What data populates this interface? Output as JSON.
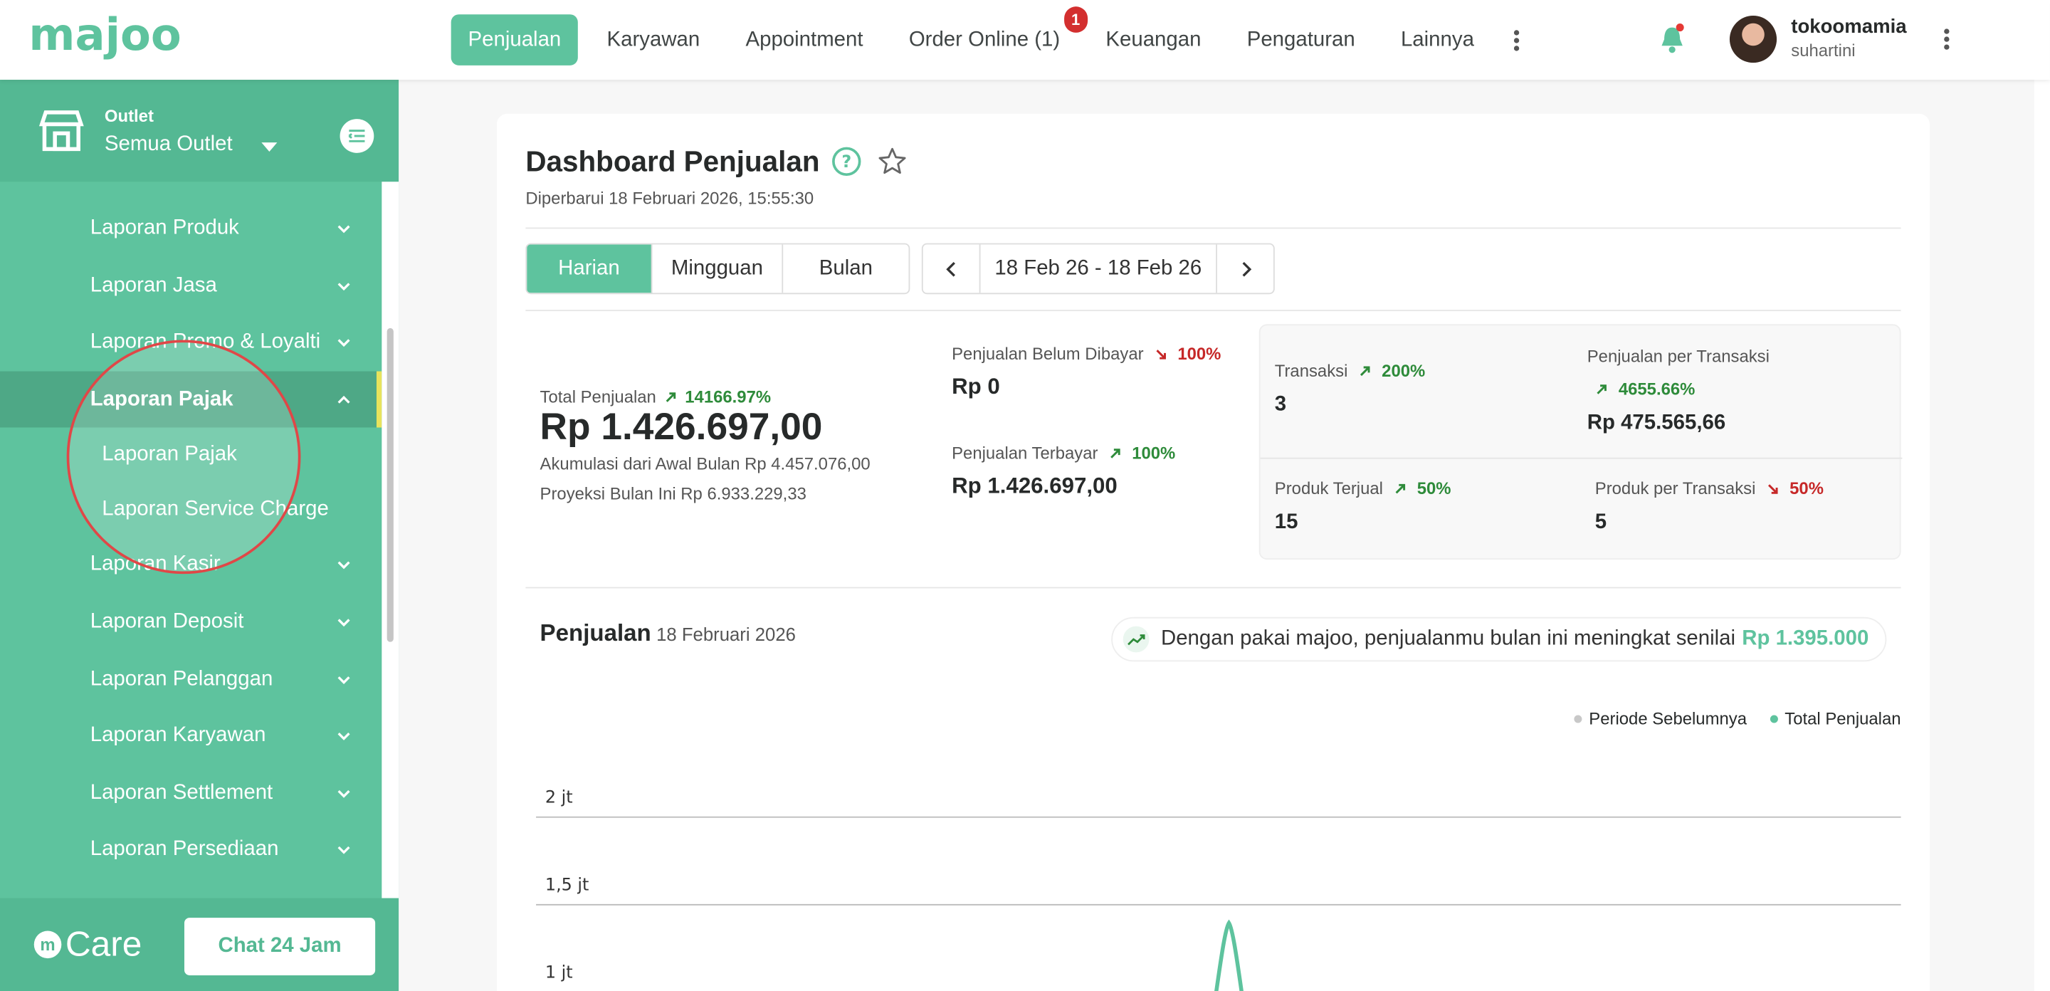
{
  "nav": {
    "items": [
      "Penjualan",
      "Karyawan",
      "Appointment",
      "Order Online (1)",
      "Keuangan",
      "Pengaturan",
      "Lainnya"
    ],
    "active_index": 0,
    "order_online_badge": "1"
  },
  "user": {
    "name": "tokoomamia",
    "subtitle": "suhartini"
  },
  "sidebar": {
    "outlet_label": "Outlet",
    "outlet_value": "Semua Outlet",
    "items": [
      {
        "label": "Laporan Produk"
      },
      {
        "label": "Laporan Jasa"
      },
      {
        "label": "Laporan Promo & Loyalti"
      },
      {
        "label": "Laporan Pajak",
        "expanded": true,
        "sub": [
          "Laporan Pajak",
          "Laporan Service Charge"
        ]
      },
      {
        "label": "Laporan Kasir"
      },
      {
        "label": "Laporan Deposit"
      },
      {
        "label": "Laporan Pelanggan"
      },
      {
        "label": "Laporan Karyawan"
      },
      {
        "label": "Laporan Settlement"
      },
      {
        "label": "Laporan Persediaan"
      }
    ],
    "care_label": "Care",
    "chat_button": "Chat 24 Jam"
  },
  "dashboard": {
    "title": "Dashboard Penjualan",
    "updated": "Diperbarui 18 Februari 2026, 15:55:30",
    "tabs": [
      "Harian",
      "Mingguan",
      "Bulan"
    ],
    "active_tab": 0,
    "date_range": "18 Feb 26 - 18 Feb 26",
    "total_label": "Total Penjualan",
    "total_pct": "14166.97%",
    "total_value": "Rp 1.426.697,00",
    "akumulasi": "Akumulasi dari Awal Bulan Rp 4.457.076,00",
    "proyeksi": "Proyeksi Bulan Ini Rp 6.933.229,33",
    "belum_label": "Penjualan Belum Dibayar",
    "belum_pct": "100%",
    "belum_value": "Rp 0",
    "terbayar_label": "Penjualan Terbayar",
    "terbayar_pct": "100%",
    "terbayar_value": "Rp 1.426.697,00",
    "stats": {
      "transaksi_label": "Transaksi",
      "transaksi_pct": "200%",
      "transaksi_value": "3",
      "ppt_label": "Penjualan per Transaksi",
      "ppt_pct": "4655.66%",
      "ppt_value": "Rp 475.565,66",
      "terjual_label": "Produk Terjual",
      "terjual_pct": "50%",
      "terjual_value": "15",
      "ppr_label": "Produk per Transaksi",
      "ppr_pct": "50%",
      "ppr_value": "5"
    },
    "chart_title": "Penjualan",
    "chart_date": "18 Februari 2026",
    "promo_text": "Dengan pakai majoo, penjualanmu bulan ini meningkat senilai",
    "promo_amount": "Rp 1.395.000",
    "legend": [
      "Periode Sebelumnya",
      "Total Penjualan"
    ],
    "y_ticks": [
      "2 jt",
      "1,5 jt",
      "1 jt"
    ]
  },
  "colors": {
    "brand": "#5ec39e",
    "up": "#2e8b3a",
    "down": "#c62828"
  }
}
